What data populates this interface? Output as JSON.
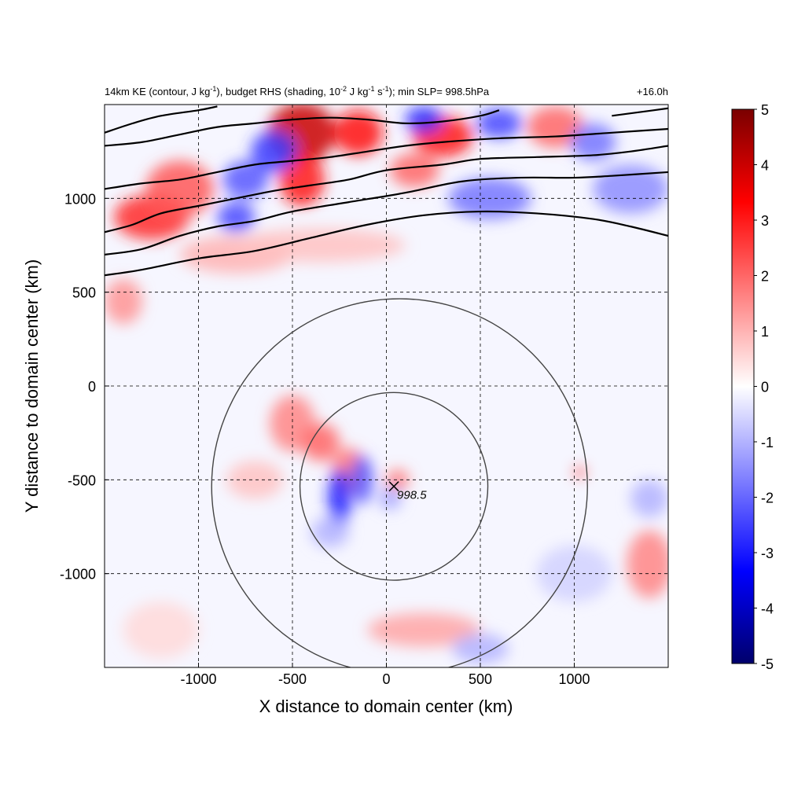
{
  "chart_data": {
    "type": "heatmap",
    "title_left": "14km KE (contour, J kg-1), budget RHS (shading, 10-2 J kg-1 s-1); min SLP= 998.5hPa",
    "title_parts": {
      "a": "14km KE (contour, J kg",
      "b": "-1",
      "c": "), budget RHS (shading, 10",
      "d": "-2",
      "e": " J kg",
      "f": "-1",
      "g": " s",
      "h": "-1",
      "i": "); min SLP= 998.5hPa"
    },
    "title_right": "+16.0h",
    "xlabel": "X distance to domain center (km)",
    "ylabel": "Y distance to domain center (km)",
    "xlim": [
      -1500,
      1500
    ],
    "ylim": [
      -1500,
      1500
    ],
    "xticks": [
      -1000,
      -500,
      0,
      500,
      1000
    ],
    "yticks": [
      -1000,
      -500,
      0,
      500,
      1000
    ],
    "grid": true,
    "colorbar": {
      "min": -5,
      "max": 5,
      "ticks": [
        5,
        4,
        3,
        2,
        1,
        0,
        -1,
        -2,
        -3,
        -4,
        -5
      ],
      "colors": [
        "#00006b",
        "#0000ff",
        "#8080ff",
        "#ffffff",
        "#ff8080",
        "#ff0000",
        "#7a0000"
      ]
    },
    "center_marker": {
      "x": 40,
      "y": -535,
      "label": "998.5"
    },
    "range_rings_km": [
      {
        "cx": 40,
        "cy": -535,
        "r": 500
      },
      {
        "cx": 70,
        "cy": -535,
        "r": 1000
      }
    ],
    "ke_contours": [
      {
        "name": "c1",
        "points": [
          [
            -1500,
            590
          ],
          [
            -1300,
            620
          ],
          [
            -1000,
            680
          ],
          [
            -700,
            720
          ],
          [
            -400,
            790
          ],
          [
            -100,
            860
          ],
          [
            200,
            910
          ],
          [
            500,
            930
          ],
          [
            800,
            920
          ],
          [
            1100,
            890
          ],
          [
            1300,
            850
          ],
          [
            1500,
            800
          ]
        ]
      },
      {
        "name": "c2",
        "points": [
          [
            -1500,
            700
          ],
          [
            -1300,
            730
          ],
          [
            -1100,
            800
          ],
          [
            -900,
            850
          ],
          [
            -700,
            880
          ],
          [
            -500,
            930
          ],
          [
            -200,
            980
          ],
          [
            100,
            1030
          ],
          [
            400,
            1090
          ],
          [
            700,
            1110
          ],
          [
            1000,
            1110
          ],
          [
            1200,
            1120
          ],
          [
            1500,
            1140
          ]
        ]
      },
      {
        "name": "c3",
        "points": [
          [
            -1500,
            820
          ],
          [
            -1350,
            860
          ],
          [
            -1200,
            920
          ],
          [
            -1000,
            960
          ],
          [
            -800,
            1000
          ],
          [
            -600,
            1040
          ],
          [
            -400,
            1070
          ],
          [
            -200,
            1100
          ],
          [
            0,
            1150
          ],
          [
            300,
            1180
          ],
          [
            500,
            1210
          ],
          [
            800,
            1220
          ],
          [
            1100,
            1230
          ],
          [
            1300,
            1250
          ],
          [
            1500,
            1280
          ]
        ]
      },
      {
        "name": "c4",
        "points": [
          [
            -1500,
            1050
          ],
          [
            -1300,
            1080
          ],
          [
            -1100,
            1100
          ],
          [
            -900,
            1140
          ],
          [
            -700,
            1180
          ],
          [
            -500,
            1200
          ],
          [
            -300,
            1220
          ],
          [
            -100,
            1250
          ],
          [
            100,
            1280
          ],
          [
            300,
            1300
          ],
          [
            600,
            1320
          ],
          [
            900,
            1330
          ],
          [
            1200,
            1350
          ],
          [
            1500,
            1370
          ]
        ]
      },
      {
        "name": "c5",
        "points": [
          [
            -1500,
            1280
          ],
          [
            -1300,
            1300
          ],
          [
            -1100,
            1340
          ],
          [
            -900,
            1380
          ],
          [
            -700,
            1400
          ],
          [
            -500,
            1420
          ],
          [
            -300,
            1430
          ],
          [
            -100,
            1420
          ],
          [
            100,
            1400
          ],
          [
            300,
            1410
          ],
          [
            500,
            1440
          ],
          [
            600,
            1470
          ]
        ]
      },
      {
        "name": "c6",
        "points": [
          [
            -1500,
            1350
          ],
          [
            -1350,
            1400
          ],
          [
            -1200,
            1440
          ],
          [
            -1000,
            1470
          ],
          [
            -900,
            1490
          ]
        ]
      },
      {
        "name": "c7",
        "points": [
          [
            1200,
            1440
          ],
          [
            1350,
            1460
          ],
          [
            1500,
            1480
          ]
        ]
      }
    ],
    "rhs_blobs": [
      {
        "x": -1250,
        "y": 900,
        "rx": 200,
        "ry": 120,
        "v": 2.8
      },
      {
        "x": -1100,
        "y": 1050,
        "rx": 180,
        "ry": 150,
        "v": 2.2
      },
      {
        "x": -450,
        "y": 1350,
        "rx": 180,
        "ry": 160,
        "v": 4.0
      },
      {
        "x": -450,
        "y": 1100,
        "rx": 120,
        "ry": 140,
        "v": 3.0
      },
      {
        "x": -150,
        "y": 1350,
        "rx": 130,
        "ry": 120,
        "v": 3.2
      },
      {
        "x": 300,
        "y": 1330,
        "rx": 160,
        "ry": 110,
        "v": 3.0
      },
      {
        "x": 150,
        "y": 1150,
        "rx": 130,
        "ry": 90,
        "v": 2.0
      },
      {
        "x": 900,
        "y": 1380,
        "rx": 150,
        "ry": 110,
        "v": 2.0
      },
      {
        "x": -800,
        "y": 700,
        "rx": 300,
        "ry": 100,
        "v": 1.0
      },
      {
        "x": -1400,
        "y": 450,
        "rx": 100,
        "ry": 120,
        "v": 1.4
      },
      {
        "x": -350,
        "y": 750,
        "rx": 450,
        "ry": 90,
        "v": 0.8
      },
      {
        "x": -600,
        "y": 1250,
        "rx": 120,
        "ry": 110,
        "v": -2.6
      },
      {
        "x": -750,
        "y": 1100,
        "rx": 120,
        "ry": 100,
        "v": -2.2
      },
      {
        "x": -800,
        "y": 900,
        "rx": 100,
        "ry": 80,
        "v": -2.4
      },
      {
        "x": 200,
        "y": 1420,
        "rx": 100,
        "ry": 70,
        "v": -2.8
      },
      {
        "x": 600,
        "y": 1400,
        "rx": 120,
        "ry": 80,
        "v": -2.4
      },
      {
        "x": 550,
        "y": 1000,
        "rx": 220,
        "ry": 110,
        "v": -1.8
      },
      {
        "x": 1300,
        "y": 1050,
        "rx": 200,
        "ry": 130,
        "v": -1.5
      },
      {
        "x": 1100,
        "y": 1300,
        "rx": 120,
        "ry": 100,
        "v": -1.8
      },
      {
        "x": -500,
        "y": -200,
        "rx": 120,
        "ry": 150,
        "v": 1.6
      },
      {
        "x": -350,
        "y": -300,
        "rx": 100,
        "ry": 100,
        "v": 2.0
      },
      {
        "x": -200,
        "y": -450,
        "rx": 90,
        "ry": 120,
        "v": 1.8
      },
      {
        "x": -250,
        "y": -600,
        "rx": 60,
        "ry": 160,
        "v": -3.0
      },
      {
        "x": -130,
        "y": -500,
        "rx": 60,
        "ry": 130,
        "v": -2.2
      },
      {
        "x": 60,
        "y": -500,
        "rx": 60,
        "ry": 55,
        "v": 1.8
      },
      {
        "x": 20,
        "y": -600,
        "rx": 60,
        "ry": 60,
        "v": -1.2
      },
      {
        "x": -300,
        "y": -780,
        "rx": 100,
        "ry": 80,
        "v": -1.0
      },
      {
        "x": -700,
        "y": -500,
        "rx": 150,
        "ry": 100,
        "v": 0.8
      },
      {
        "x": 1030,
        "y": -460,
        "rx": 25,
        "ry": 25,
        "v": 3.0
      },
      {
        "x": 1400,
        "y": -950,
        "rx": 120,
        "ry": 180,
        "v": 1.6
      },
      {
        "x": 1400,
        "y": -600,
        "rx": 100,
        "ry": 100,
        "v": -1.0
      },
      {
        "x": 200,
        "y": -1300,
        "rx": 300,
        "ry": 90,
        "v": 1.2
      },
      {
        "x": 500,
        "y": -1400,
        "rx": 150,
        "ry": 80,
        "v": -1.0
      },
      {
        "x": -1200,
        "y": -1300,
        "rx": 200,
        "ry": 150,
        "v": 0.5
      },
      {
        "x": 1000,
        "y": -1000,
        "rx": 200,
        "ry": 150,
        "v": -0.6
      }
    ]
  }
}
